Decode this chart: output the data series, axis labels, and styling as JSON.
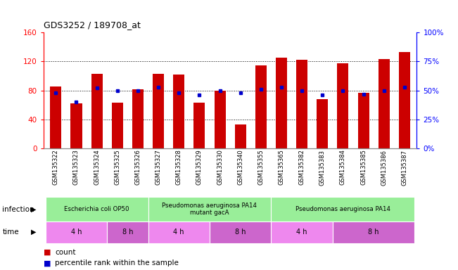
{
  "title": "GDS3252 / 189708_at",
  "samples": [
    "GSM135322",
    "GSM135323",
    "GSM135324",
    "GSM135325",
    "GSM135326",
    "GSM135327",
    "GSM135328",
    "GSM135329",
    "GSM135330",
    "GSM135340",
    "GSM135355",
    "GSM135365",
    "GSM135382",
    "GSM135383",
    "GSM135384",
    "GSM135385",
    "GSM135386",
    "GSM135387"
  ],
  "counts": [
    85,
    62,
    103,
    63,
    82,
    103,
    102,
    63,
    80,
    33,
    115,
    125,
    122,
    68,
    117,
    77,
    123,
    133
  ],
  "percentiles": [
    48,
    40,
    52,
    50,
    50,
    53,
    48,
    46,
    50,
    48,
    51,
    53,
    50,
    46,
    50,
    47,
    50,
    53
  ],
  "inf_groups": [
    {
      "label": "Escherichia coli OP50",
      "start": 0,
      "end": 5,
      "color": "#99EE99"
    },
    {
      "label": "Pseudomonas aeruginosa PA14\nmutant gacA",
      "start": 5,
      "end": 11,
      "color": "#99EE99"
    },
    {
      "label": "Pseudomonas aeruginosa PA14",
      "start": 11,
      "end": 18,
      "color": "#99EE99"
    }
  ],
  "time_groups": [
    {
      "label": "4 h",
      "start": 0,
      "end": 3,
      "color": "#EE88EE"
    },
    {
      "label": "8 h",
      "start": 3,
      "end": 5,
      "color": "#CC66CC"
    },
    {
      "label": "4 h",
      "start": 5,
      "end": 8,
      "color": "#EE88EE"
    },
    {
      "label": "8 h",
      "start": 8,
      "end": 11,
      "color": "#CC66CC"
    },
    {
      "label": "4 h",
      "start": 11,
      "end": 14,
      "color": "#EE88EE"
    },
    {
      "label": "8 h",
      "start": 14,
      "end": 18,
      "color": "#CC66CC"
    }
  ],
  "bar_color": "#CC0000",
  "dot_color": "#0000CC",
  "ylim_left": [
    0,
    160
  ],
  "ylim_right": [
    0,
    100
  ],
  "yticks_left": [
    0,
    40,
    80,
    120,
    160
  ],
  "ytick_labels_left": [
    "0",
    "40",
    "80",
    "120",
    "160"
  ],
  "yticks_right": [
    0,
    25,
    50,
    75,
    100
  ],
  "ytick_labels_right": [
    "0%",
    "25%",
    "50%",
    "75%",
    "100%"
  ],
  "bg_color": "#FFFFFF",
  "infection_label": "infection",
  "time_label": "time",
  "legend_count_label": "count",
  "legend_pct_label": "percentile rank within the sample"
}
